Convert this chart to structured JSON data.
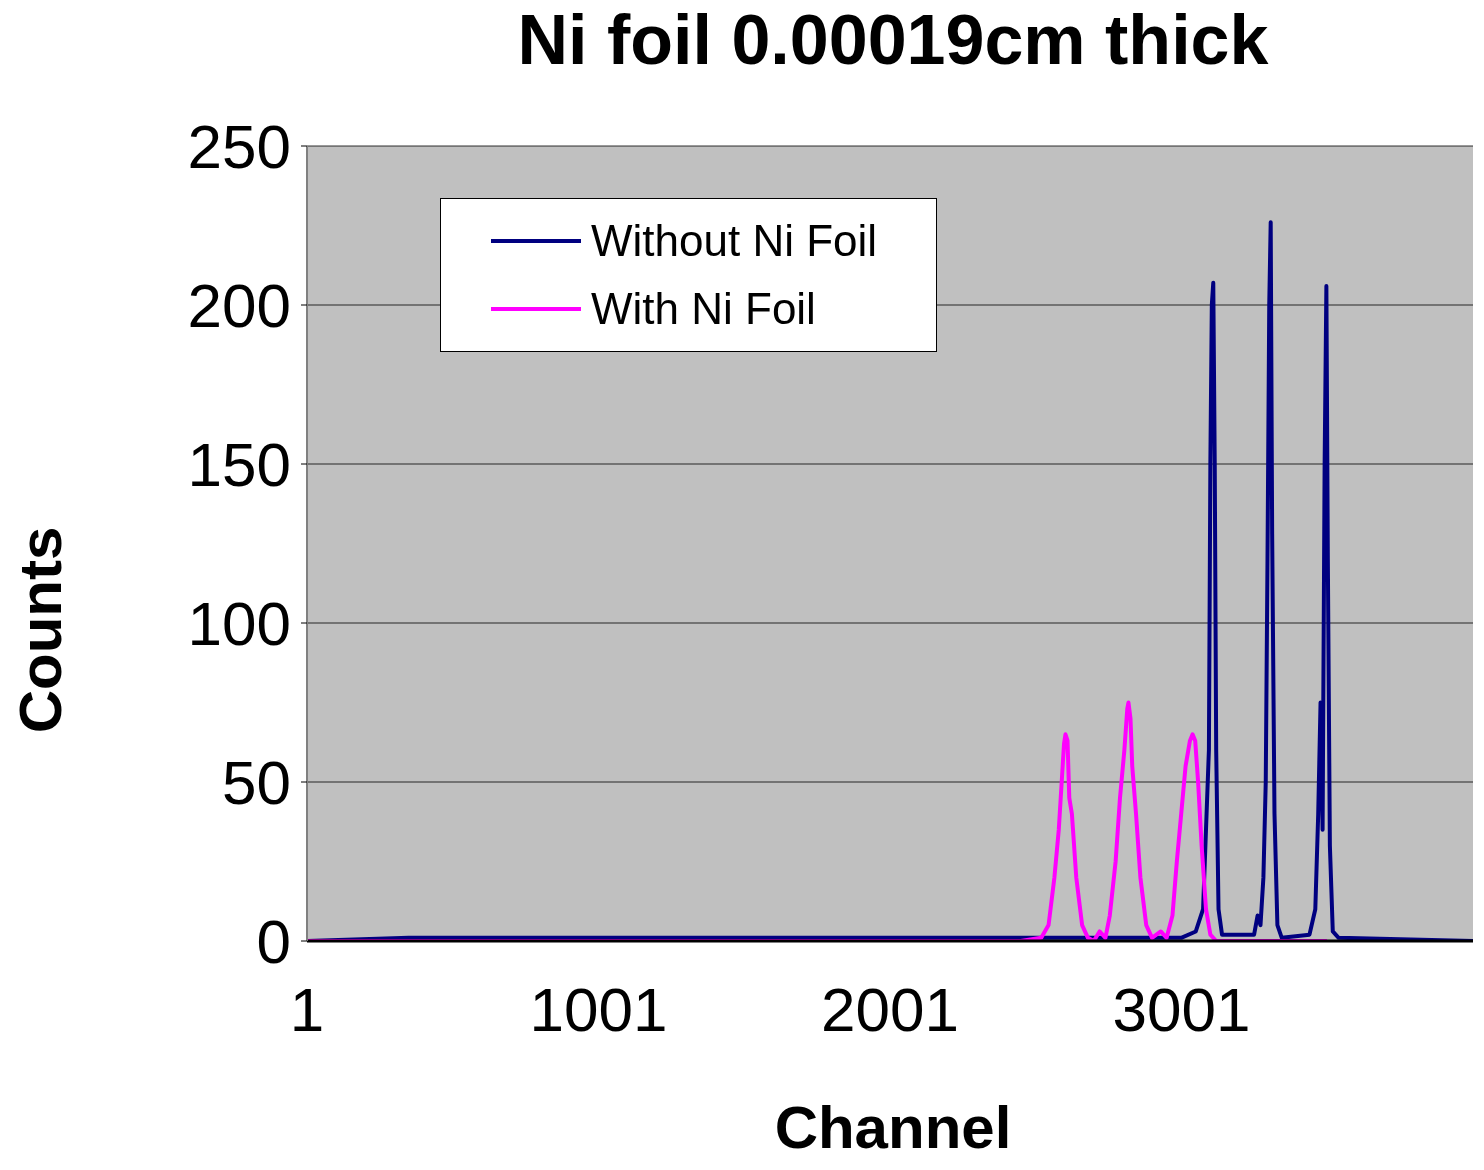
{
  "chart_data": {
    "type": "line",
    "title": "Ni foil 0.00019cm thick",
    "xlabel": "Channel",
    "ylabel": "Counts",
    "xlim": [
      1,
      4001
    ],
    "xticks": [
      1,
      1001,
      2001,
      3001
    ],
    "ylim": [
      0,
      250
    ],
    "yticks": [
      0,
      50,
      100,
      150,
      200,
      250
    ],
    "grid": "y",
    "legend": "top left",
    "marker": "none",
    "line_style": "solid",
    "series": [
      {
        "name": "Without Ni Foil",
        "color": "#000080",
        "x": [
          1,
          350,
          3000,
          3050,
          3075,
          3085,
          3095,
          3100,
          3105,
          3110,
          3115,
          3120,
          3128,
          3140,
          3250,
          3262,
          3272,
          3282,
          3290,
          3296,
          3302,
          3307,
          3312,
          3320,
          3330,
          3345,
          3440,
          3460,
          3470,
          3478,
          3485,
          3492,
          3498,
          3503,
          3510,
          3520,
          3540,
          4001
        ],
        "values": [
          0,
          1,
          1,
          3,
          10,
          35,
          60,
          150,
          200,
          207,
          150,
          60,
          10,
          2,
          2,
          8,
          5,
          20,
          50,
          120,
          200,
          226,
          128,
          40,
          5,
          1,
          2,
          10,
          40,
          75,
          35,
          150,
          206,
          120,
          30,
          3,
          1,
          0
        ]
      },
      {
        "name": "With Ni Foil",
        "color": "#ff00ff",
        "x": [
          1,
          2450,
          2520,
          2545,
          2565,
          2580,
          2590,
          2598,
          2603,
          2610,
          2616,
          2625,
          2640,
          2660,
          2680,
          2700,
          2720,
          2740,
          2755,
          2775,
          2790,
          2805,
          2815,
          2819,
          2826,
          2832,
          2845,
          2860,
          2880,
          2900,
          2930,
          2950,
          2970,
          2985,
          3000,
          3015,
          3030,
          3039,
          3048,
          3058,
          3070,
          3085,
          3100,
          3120,
          3500
        ],
        "values": [
          0,
          0,
          1,
          5,
          20,
          35,
          50,
          62,
          65,
          63,
          45,
          40,
          20,
          5,
          1,
          0,
          3,
          1,
          8,
          25,
          45,
          60,
          73,
          75,
          70,
          55,
          40,
          20,
          5,
          1,
          3,
          1,
          8,
          25,
          40,
          55,
          63,
          65,
          63,
          50,
          30,
          10,
          2,
          0,
          0
        ]
      }
    ]
  }
}
